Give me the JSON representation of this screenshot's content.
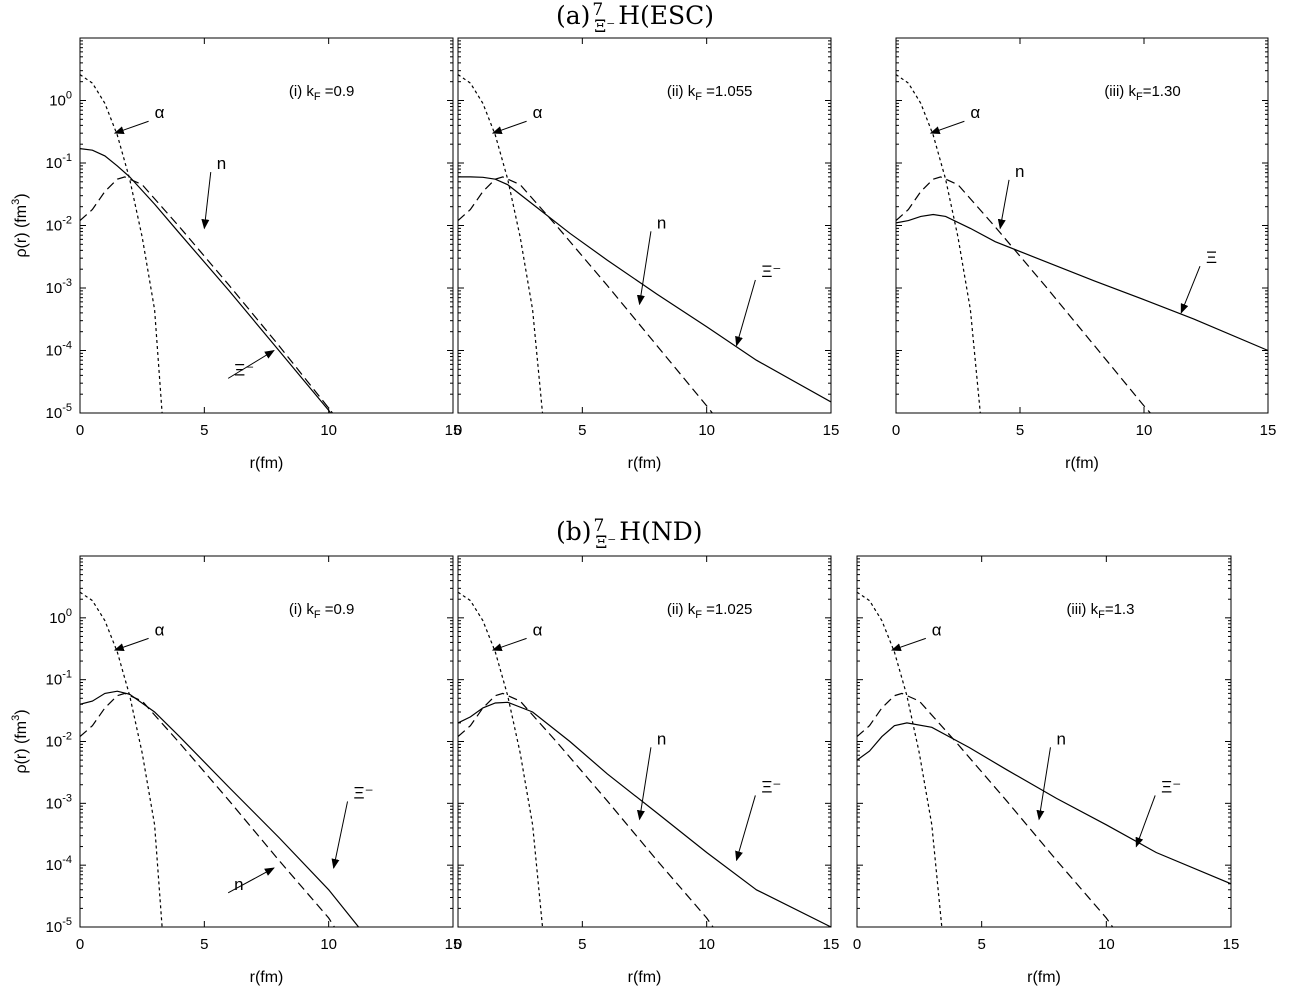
{
  "rows": [
    {
      "title_pre": "(a)",
      "title_sup": "7",
      "title_sub": "Ξ⁻",
      "title_post": "H(ESC)"
    },
    {
      "title_pre": "(b)",
      "title_sup": "7",
      "title_sub": "Ξ⁻",
      "title_post": "H(ND)"
    }
  ],
  "chart_data": [
    {
      "type": "line",
      "row": 0,
      "col": 0,
      "panel_label": "(i) k",
      "panel_label_sub": "F",
      "panel_label_post": "  =0.9",
      "xlabel": "r(fm)",
      "ylabel": "ρ(r)  (fm",
      "ylabel_sup": "3",
      "ylabel_post": ")",
      "xlim": [
        0,
        15
      ],
      "ylim_log10": [
        -5,
        1
      ],
      "log_scale_y": true,
      "x_ticks": [
        0,
        5,
        10,
        15
      ],
      "y_tick_exponents": [
        0,
        -1,
        -2,
        -3,
        -4,
        -5
      ],
      "series": [
        {
          "name": "α",
          "style": "dotted",
          "x": [
            0,
            0.5,
            1,
            1.5,
            2,
            2.5,
            3,
            3.3
          ],
          "y": [
            2.6,
            1.9,
            0.9,
            0.28,
            0.055,
            0.0065,
            0.00045,
            1e-05
          ]
        },
        {
          "name": "n",
          "style": "dashed",
          "x": [
            0,
            0.5,
            1,
            1.5,
            1.8,
            2.5,
            4,
            6,
            8,
            10,
            12
          ],
          "y": [
            0.012,
            0.018,
            0.035,
            0.055,
            0.06,
            0.045,
            0.0095,
            0.0011,
            0.00012,
            1.2e-05,
            1.1e-06
          ]
        },
        {
          "name": "Ξ⁻",
          "style": "solid",
          "x": [
            0,
            0.5,
            1,
            1.5,
            2,
            3,
            4,
            6,
            8,
            10,
            12
          ],
          "y": [
            0.17,
            0.16,
            0.13,
            0.09,
            0.06,
            0.022,
            0.0075,
            0.0009,
            0.0001,
            1.1e-05,
            9e-07
          ]
        }
      ],
      "annotations": [
        {
          "text": "α",
          "tx": 3,
          "ty": 0.52,
          "ax": 1.4,
          "ay": 0.3
        },
        {
          "text": "n",
          "tx": 5.5,
          "ty": 0.08,
          "ax": 5.0,
          "ay": 0.009
        },
        {
          "text": "Ξ⁻",
          "tx": 6.2,
          "ty": 4e-05,
          "ax": 7.8,
          "ay": 0.0001
        }
      ]
    },
    {
      "type": "line",
      "row": 0,
      "col": 1,
      "panel_label": "(ii) k",
      "panel_label_sub": "F",
      "panel_label_post": " =1.055",
      "xlabel": "r(fm)",
      "xlim": [
        0,
        15
      ],
      "ylim_log10": [
        -5,
        1
      ],
      "log_scale_y": true,
      "x_ticks": [
        0,
        5,
        10,
        15
      ],
      "series": [
        {
          "name": "α",
          "style": "dotted",
          "x": [
            0,
            0.5,
            1,
            1.5,
            2,
            2.5,
            3,
            3.4
          ],
          "y": [
            2.6,
            1.9,
            0.9,
            0.28,
            0.055,
            0.0065,
            0.00045,
            1e-05
          ]
        },
        {
          "name": "n",
          "style": "dashed",
          "x": [
            0,
            0.5,
            1,
            1.5,
            1.8,
            2.5,
            4,
            6,
            8,
            10,
            12.2
          ],
          "y": [
            0.012,
            0.018,
            0.035,
            0.055,
            0.06,
            0.045,
            0.0095,
            0.0011,
            0.00012,
            1.3e-05,
            1e-06
          ]
        },
        {
          "name": "Ξ⁻",
          "style": "solid",
          "x": [
            0,
            0.5,
            1,
            1.5,
            2,
            3,
            4.5,
            6,
            8,
            10,
            12,
            15
          ],
          "y": [
            0.06,
            0.06,
            0.059,
            0.055,
            0.045,
            0.022,
            0.0075,
            0.0028,
            0.0008,
            0.00024,
            7e-05,
            1.5e-05
          ]
        }
      ],
      "annotations": [
        {
          "text": "α",
          "tx": 3,
          "ty": 0.52,
          "ax": 1.4,
          "ay": 0.3
        },
        {
          "text": "n",
          "tx": 8,
          "ty": 0.009,
          "ax": 7.3,
          "ay": 0.00055
        },
        {
          "text": "Ξ⁻",
          "tx": 12.2,
          "ty": 0.0015,
          "ax": 11.2,
          "ay": 0.00012
        }
      ]
    },
    {
      "type": "line",
      "row": 0,
      "col": 2,
      "panel_label": "(iii) k",
      "panel_label_sub": "F",
      "panel_label_post": "=1.30",
      "xlabel": "r(fm)",
      "xlim": [
        0,
        15
      ],
      "ylim_log10": [
        -5,
        1
      ],
      "log_scale_y": true,
      "x_ticks": [
        0,
        5,
        10,
        15
      ],
      "series": [
        {
          "name": "α",
          "style": "dotted",
          "x": [
            0,
            0.5,
            1,
            1.5,
            2,
            2.5,
            3,
            3.4
          ],
          "y": [
            2.6,
            1.9,
            0.9,
            0.28,
            0.055,
            0.0065,
            0.00045,
            1e-05
          ]
        },
        {
          "name": "n",
          "style": "dashed",
          "x": [
            0,
            0.5,
            1,
            1.5,
            1.8,
            2.5,
            4,
            6,
            8,
            10,
            12.5
          ],
          "y": [
            0.012,
            0.018,
            0.035,
            0.055,
            0.06,
            0.045,
            0.0095,
            0.0011,
            0.00012,
            1.3e-05,
            1e-06
          ]
        },
        {
          "name": "Ξ",
          "style": "solid",
          "x": [
            0,
            0.5,
            1,
            1.5,
            2,
            3,
            4,
            5.5,
            8,
            10,
            12,
            15
          ],
          "y": [
            0.011,
            0.012,
            0.014,
            0.015,
            0.014,
            0.009,
            0.0055,
            0.0032,
            0.0013,
            0.00065,
            0.00032,
            0.0001
          ]
        }
      ],
      "annotations": [
        {
          "text": "α",
          "tx": 3,
          "ty": 0.52,
          "ax": 1.4,
          "ay": 0.3
        },
        {
          "text": "n",
          "tx": 4.8,
          "ty": 0.06,
          "ax": 4.2,
          "ay": 0.009
        },
        {
          "text": "Ξ",
          "tx": 12.5,
          "ty": 0.0025,
          "ax": 11.5,
          "ay": 0.0004
        }
      ]
    },
    {
      "type": "line",
      "row": 1,
      "col": 0,
      "panel_label": "(i) k",
      "panel_label_sub": "F",
      "panel_label_post": "   =0.9",
      "xlabel": "r(fm)",
      "ylabel": "ρ(r)  (fm",
      "ylabel_sup": "3",
      "ylabel_post": ")",
      "xlim": [
        0,
        15
      ],
      "ylim_log10": [
        -5,
        1
      ],
      "log_scale_y": true,
      "x_ticks": [
        0,
        5,
        10,
        15
      ],
      "y_tick_exponents": [
        0,
        -1,
        -2,
        -3,
        -4,
        -5
      ],
      "series": [
        {
          "name": "α",
          "style": "dotted",
          "x": [
            0,
            0.5,
            1,
            1.5,
            2,
            2.5,
            3,
            3.3
          ],
          "y": [
            2.6,
            1.9,
            0.9,
            0.28,
            0.055,
            0.0065,
            0.00045,
            1e-05
          ]
        },
        {
          "name": "n",
          "style": "dashed",
          "x": [
            0,
            0.5,
            1,
            1.5,
            1.8,
            2.5,
            4,
            6,
            8,
            10,
            11.8
          ],
          "y": [
            0.012,
            0.018,
            0.035,
            0.055,
            0.06,
            0.045,
            0.0095,
            0.0011,
            0.00012,
            1.4e-05,
            1e-06
          ]
        },
        {
          "name": "Ξ⁻",
          "style": "solid",
          "x": [
            0,
            0.5,
            1,
            1.5,
            2,
            3,
            4,
            6,
            8,
            10,
            13.2
          ],
          "y": [
            0.04,
            0.045,
            0.06,
            0.065,
            0.058,
            0.03,
            0.012,
            0.0018,
            0.00028,
            4e-05,
            1e-06
          ]
        }
      ],
      "annotations": [
        {
          "text": "α",
          "tx": 3,
          "ty": 0.52,
          "ax": 1.4,
          "ay": 0.3
        },
        {
          "text": "n",
          "tx": 6.2,
          "ty": 4e-05,
          "ax": 7.8,
          "ay": 9e-05
        },
        {
          "text": "Ξ⁻",
          "tx": 11,
          "ty": 0.0012,
          "ax": 10.2,
          "ay": 9e-05
        }
      ]
    },
    {
      "type": "line",
      "row": 1,
      "col": 1,
      "panel_label": "(ii) k",
      "panel_label_sub": "F",
      "panel_label_post": " =1.025",
      "xlabel": "r(fm)",
      "xlim": [
        0,
        15
      ],
      "ylim_log10": [
        -5,
        1
      ],
      "log_scale_y": true,
      "x_ticks": [
        0,
        5,
        10,
        15
      ],
      "series": [
        {
          "name": "α",
          "style": "dotted",
          "x": [
            0,
            0.5,
            1,
            1.5,
            2,
            2.5,
            3,
            3.4
          ],
          "y": [
            2.6,
            1.9,
            0.9,
            0.28,
            0.055,
            0.0065,
            0.00045,
            1e-05
          ]
        },
        {
          "name": "n",
          "style": "dashed",
          "x": [
            0,
            0.5,
            1,
            1.5,
            1.8,
            2.5,
            4,
            6,
            8,
            10,
            12
          ],
          "y": [
            0.012,
            0.018,
            0.035,
            0.055,
            0.06,
            0.045,
            0.0095,
            0.0011,
            0.00012,
            1.4e-05,
            1e-06
          ]
        },
        {
          "name": "Ξ⁻",
          "style": "solid",
          "x": [
            0,
            0.5,
            1,
            1.5,
            2,
            3,
            4.5,
            6,
            8,
            10,
            12,
            15
          ],
          "y": [
            0.02,
            0.025,
            0.035,
            0.042,
            0.043,
            0.03,
            0.01,
            0.003,
            0.0007,
            0.00016,
            4e-05,
            1e-05
          ]
        }
      ],
      "annotations": [
        {
          "text": "α",
          "tx": 3,
          "ty": 0.52,
          "ax": 1.4,
          "ay": 0.3
        },
        {
          "text": "n",
          "tx": 8,
          "ty": 0.009,
          "ax": 7.3,
          "ay": 0.00055
        },
        {
          "text": "Ξ⁻",
          "tx": 12.2,
          "ty": 0.0015,
          "ax": 11.2,
          "ay": 0.00012
        }
      ]
    },
    {
      "type": "line",
      "row": 1,
      "col": 2,
      "panel_label": "(iii) k",
      "panel_label_sub": "F",
      "panel_label_post": "=1.3",
      "xlabel": "r(fm)",
      "xlim": [
        0,
        15
      ],
      "ylim_log10": [
        -5,
        1
      ],
      "log_scale_y": true,
      "x_ticks": [
        0,
        5,
        10,
        15
      ],
      "series": [
        {
          "name": "α",
          "style": "dotted",
          "x": [
            0,
            0.5,
            1,
            1.5,
            2,
            2.5,
            3,
            3.4
          ],
          "y": [
            2.6,
            1.9,
            0.9,
            0.28,
            0.055,
            0.0065,
            0.00045,
            1e-05
          ]
        },
        {
          "name": "n",
          "style": "dashed",
          "x": [
            0,
            0.5,
            1,
            1.5,
            1.8,
            2.5,
            4,
            6,
            8,
            10,
            12
          ],
          "y": [
            0.012,
            0.018,
            0.035,
            0.055,
            0.06,
            0.045,
            0.0095,
            0.0011,
            0.00012,
            1.4e-05,
            1e-06
          ]
        },
        {
          "name": "Ξ⁻",
          "style": "solid",
          "x": [
            0,
            0.5,
            1,
            1.5,
            2,
            3,
            4.5,
            6,
            8,
            10,
            12,
            15
          ],
          "y": [
            0.005,
            0.007,
            0.012,
            0.018,
            0.02,
            0.017,
            0.008,
            0.0035,
            0.0012,
            0.00045,
            0.00016,
            5e-05
          ]
        }
      ],
      "annotations": [
        {
          "text": "α",
          "tx": 3,
          "ty": 0.52,
          "ax": 1.4,
          "ay": 0.3
        },
        {
          "text": "n",
          "tx": 8,
          "ty": 0.009,
          "ax": 7.3,
          "ay": 0.00055
        },
        {
          "text": "Ξ⁻",
          "tx": 12.2,
          "ty": 0.0015,
          "ax": 11.2,
          "ay": 0.0002
        }
      ]
    }
  ]
}
